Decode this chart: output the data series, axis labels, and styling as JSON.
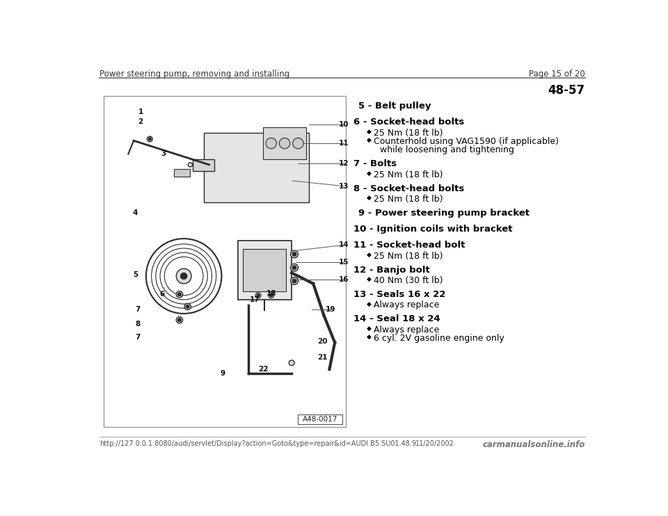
{
  "header_left": "Power steering pump, removing and installing",
  "header_right": "Page 15 of 20",
  "page_number": "48-57",
  "footer_url": "http://127.0.0.1:8080/audi/servlet/Display?action=Goto&type=repair&id=AUDI.B5.SU01.48.9",
  "footer_date": "11/20/2002",
  "footer_logo": "carmanualsonline.info",
  "bg_color": "#ffffff",
  "header_line_color": "#888888",
  "footer_line_color": "#aaaaaa",
  "text_color": "#000000",
  "diagram_label": "A48-0017",
  "header_fontsize": 8.5,
  "item_fontsize": 9.5,
  "bullet_fontsize": 9,
  "footer_fontsize": 7,
  "items": [
    {
      "number": "5",
      "label": "Belt pulley",
      "bullets": []
    },
    {
      "number": "6",
      "label": "Socket-head bolts",
      "bullets": [
        {
          "text": "25 Nm (18 ft lb)",
          "continuation": null
        },
        {
          "text": "Counterhold using VAG1590 (if applicable)",
          "continuation": "while loosening and tightening"
        }
      ]
    },
    {
      "number": "7",
      "label": "Bolts",
      "bullets": [
        {
          "text": "25 Nm (18 ft lb)",
          "continuation": null
        }
      ]
    },
    {
      "number": "8",
      "label": "Socket-head bolts",
      "bullets": [
        {
          "text": "25 Nm (18 ft lb)",
          "continuation": null
        }
      ]
    },
    {
      "number": "9",
      "label": "Power steering pump bracket",
      "bullets": []
    },
    {
      "number": "10",
      "label": "Ignition coils with bracket",
      "bullets": []
    },
    {
      "number": "11",
      "label": "Socket-head bolt",
      "bullets": [
        {
          "text": "25 Nm (18 ft lb)",
          "continuation": null
        }
      ]
    },
    {
      "number": "12",
      "label": "Banjo bolt",
      "bullets": [
        {
          "text": "40 Nm (30 ft lb)",
          "continuation": null
        }
      ]
    },
    {
      "number": "13",
      "label": "Seals 16 x 22",
      "bullets": [
        {
          "text": "Always replace",
          "continuation": null
        }
      ]
    },
    {
      "number": "14",
      "label": "Seal 18 x 24",
      "bullets": [
        {
          "text": "Always replace",
          "continuation": null
        },
        {
          "text": "6 cyl. 2V gasoline engine only",
          "continuation": null
        }
      ]
    }
  ]
}
